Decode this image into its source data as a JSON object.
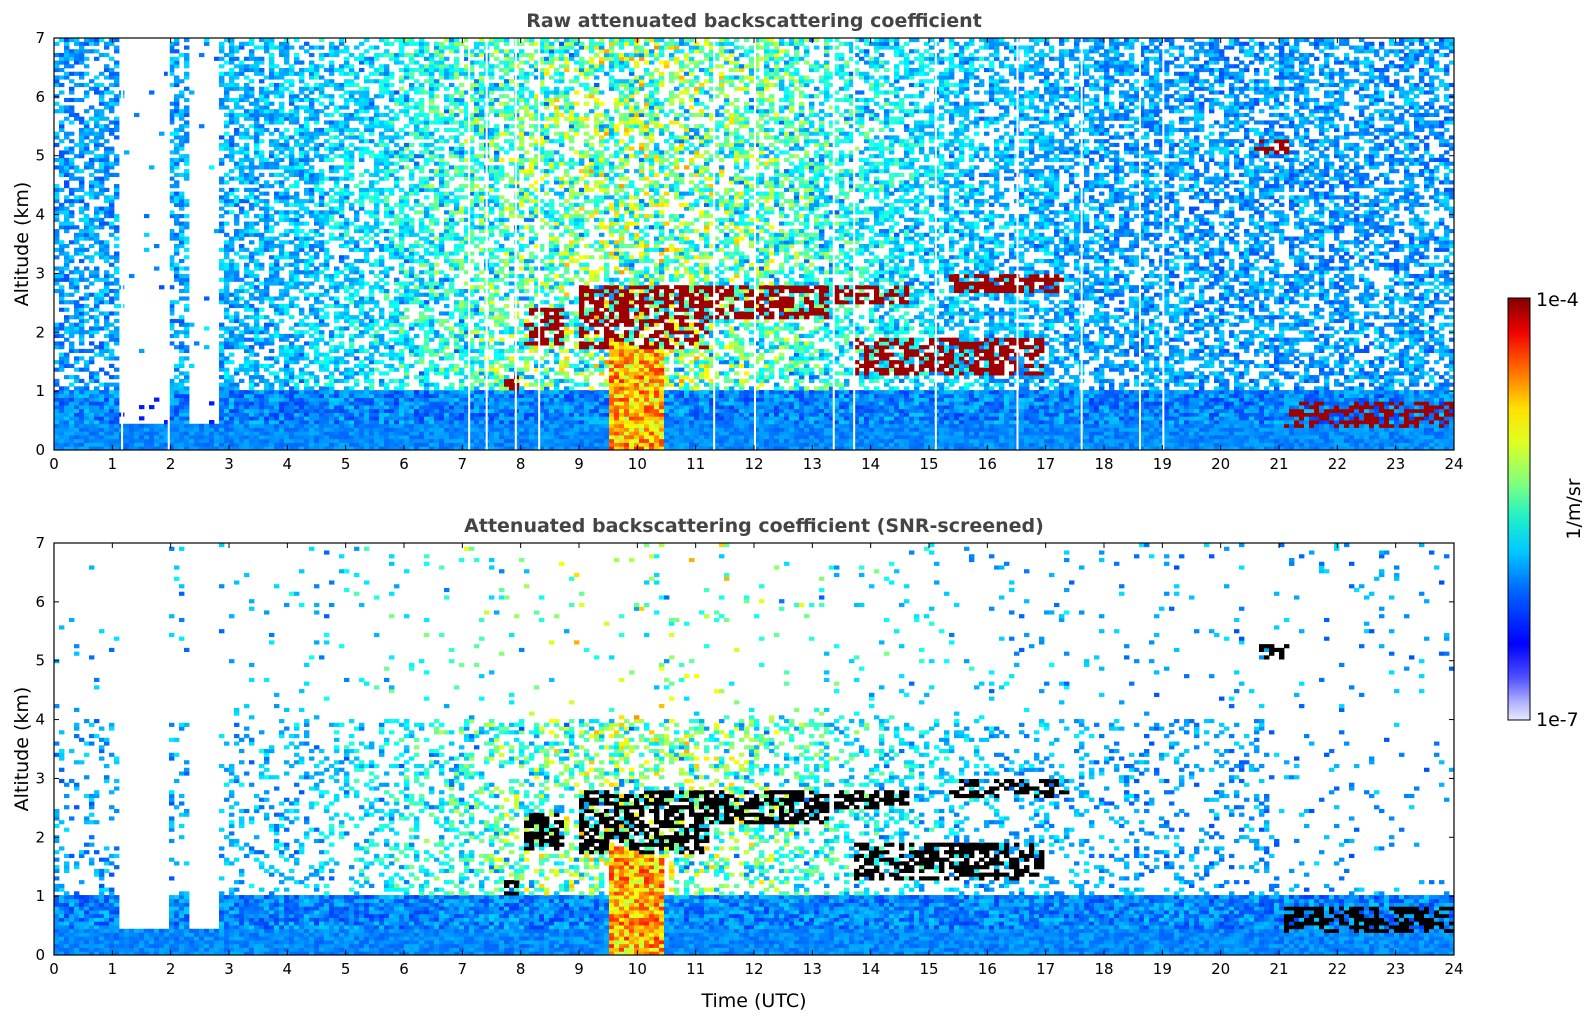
{
  "chart_data": [
    {
      "type": "heatmap",
      "title": "Raw attenuated backscattering coefficient",
      "xlabel": "",
      "ylabel": "Altitude (km)",
      "xlim": [
        0,
        24
      ],
      "ylim": [
        0,
        7
      ],
      "xticks": [
        "0",
        "1",
        "2",
        "3",
        "4",
        "5",
        "6",
        "7",
        "8",
        "9",
        "10",
        "11",
        "12",
        "13",
        "14",
        "15",
        "16",
        "17",
        "18",
        "19",
        "20",
        "21",
        "22",
        "23",
        "24"
      ],
      "yticks": [
        "0",
        "1",
        "2",
        "3",
        "4",
        "5",
        "6",
        "7"
      ],
      "screened": false,
      "features": {
        "aerosol_layer_top_km": 0.5,
        "cloud_layers": [
          {
            "t": [
              7.7,
              8.0
            ],
            "alt": [
              1.0,
              1.3
            ]
          },
          {
            "t": [
              8.1,
              8.7
            ],
            "alt": [
              1.8,
              2.4
            ]
          },
          {
            "t": [
              9.0,
              11.2
            ],
            "alt": [
              1.7,
              2.8
            ]
          },
          {
            "t": [
              11.2,
              13.3
            ],
            "alt": [
              2.2,
              2.8
            ]
          },
          {
            "t": [
              13.4,
              14.7
            ],
            "alt": [
              2.5,
              2.8
            ]
          },
          {
            "t": [
              15.3,
              17.4
            ],
            "alt": [
              2.7,
              3.0
            ]
          },
          {
            "t": [
              13.7,
              17.0
            ],
            "alt": [
              1.3,
              1.9
            ]
          },
          {
            "t": [
              20.6,
              21.2
            ],
            "alt": [
              5.0,
              5.3
            ]
          },
          {
            "t": [
              21.1,
              24.0
            ],
            "alt": [
              0.4,
              0.8
            ]
          }
        ]
      }
    },
    {
      "type": "heatmap",
      "title": "Attenuated backscattering coefficient (SNR-screened)",
      "xlabel": "Time (UTC)",
      "ylabel": "Altitude (km)",
      "xlim": [
        0,
        24
      ],
      "ylim": [
        0,
        7
      ],
      "xticks": [
        "0",
        "1",
        "2",
        "3",
        "4",
        "5",
        "6",
        "7",
        "8",
        "9",
        "10",
        "11",
        "12",
        "13",
        "14",
        "15",
        "16",
        "17",
        "18",
        "19",
        "20",
        "21",
        "22",
        "23",
        "24"
      ],
      "yticks": [
        "0",
        "1",
        "2",
        "3",
        "4",
        "5",
        "6",
        "7"
      ],
      "screened": true
    }
  ],
  "colorbar": {
    "label": "1/m/sr",
    "max_label": "1e-4",
    "min_label": "1e-7",
    "scale": "log",
    "range": [
      1e-07,
      0.0001
    ],
    "colormap": "jet"
  }
}
